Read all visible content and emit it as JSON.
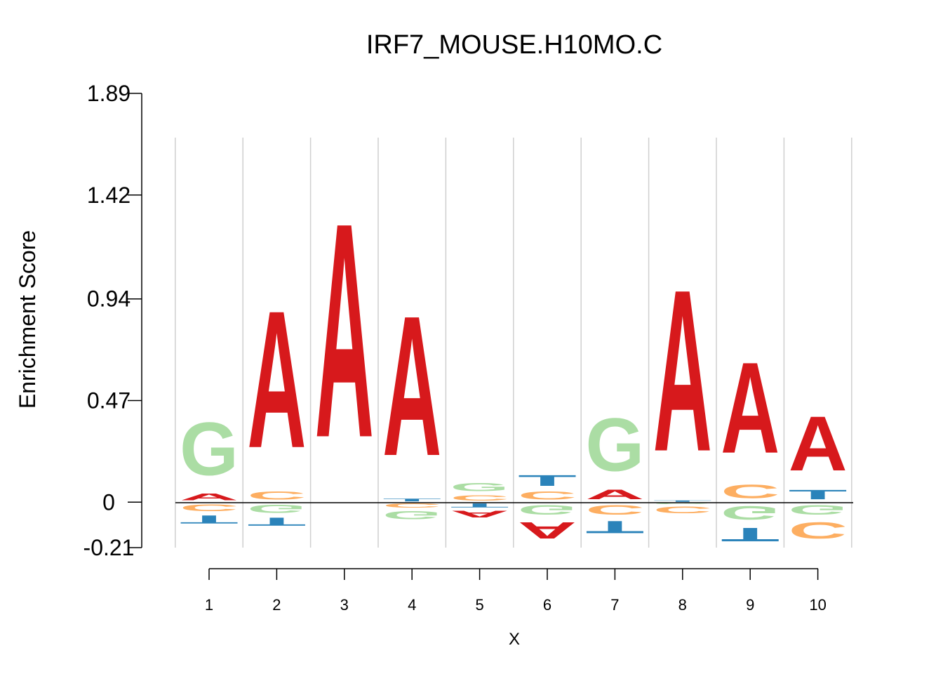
{
  "chart_data": {
    "type": "sequence-logo",
    "title": "IRF7_MOUSE.H10MO.C",
    "xlabel": "X",
    "ylabel": "Enrichment Score",
    "ylim": [
      -0.21,
      1.89
    ],
    "yticks": [
      "1.89",
      "1.42",
      "0.94",
      "0.47",
      "0",
      "-0.21"
    ],
    "yticks_values": [
      1.89,
      1.42,
      0.94,
      0.47,
      0,
      -0.21
    ],
    "xticks": [
      "1",
      "2",
      "3",
      "4",
      "5",
      "6",
      "7",
      "8",
      "9",
      "10"
    ],
    "colors": {
      "A": "#d7191c",
      "C": "#fdae61",
      "G": "#abdda4",
      "T": "#2b83ba"
    },
    "positions": [
      {
        "x": 1,
        "pos": [
          [
            "G",
            0.39
          ],
          [
            "A",
            0.05
          ]
        ],
        "neg": [
          [
            "C",
            0.05
          ],
          [
            "T",
            0.06
          ]
        ]
      },
      {
        "x": 2,
        "pos": [
          [
            "A",
            1.01
          ],
          [
            "C",
            0.06
          ]
        ],
        "neg": [
          [
            "G",
            0.06
          ],
          [
            "T",
            0.06
          ]
        ]
      },
      {
        "x": 3,
        "pos": [
          [
            "A",
            1.58
          ]
        ],
        "neg": []
      },
      {
        "x": 4,
        "pos": [
          [
            "A",
            1.03
          ],
          [
            "T",
            0.02
          ]
        ],
        "neg": [
          [
            "C",
            0.03
          ],
          [
            "G",
            0.06
          ]
        ]
      },
      {
        "x": 5,
        "pos": [
          [
            "G",
            0.06
          ],
          [
            "C",
            0.04
          ]
        ],
        "neg": [
          [
            "T",
            0.03
          ],
          [
            "A",
            0.05
          ]
        ]
      },
      {
        "x": 6,
        "pos": [
          [
            "T",
            0.08
          ],
          [
            "C",
            0.06
          ]
        ],
        "neg": [
          [
            "G",
            0.07
          ],
          [
            "A",
            0.12
          ]
        ]
      },
      {
        "x": 7,
        "pos": [
          [
            "G",
            0.39
          ],
          [
            "A",
            0.07
          ]
        ],
        "neg": [
          [
            "C",
            0.07
          ],
          [
            "T",
            0.09
          ]
        ]
      },
      {
        "x": 8,
        "pos": [
          [
            "A",
            1.19
          ],
          [
            "T",
            0.01
          ]
        ],
        "neg": [
          [
            "G",
            0.01
          ],
          [
            "C",
            0.05
          ]
        ]
      },
      {
        "x": 9,
        "pos": [
          [
            "A",
            0.67
          ],
          [
            "C",
            0.1
          ]
        ],
        "neg": [
          [
            "G",
            0.1
          ],
          [
            "T",
            0.1
          ]
        ]
      },
      {
        "x": 10,
        "pos": [
          [
            "A",
            0.4
          ],
          [
            "T",
            0.07
          ]
        ],
        "neg": [
          [
            "G",
            0.07
          ],
          [
            "C",
            0.12
          ]
        ]
      }
    ]
  }
}
